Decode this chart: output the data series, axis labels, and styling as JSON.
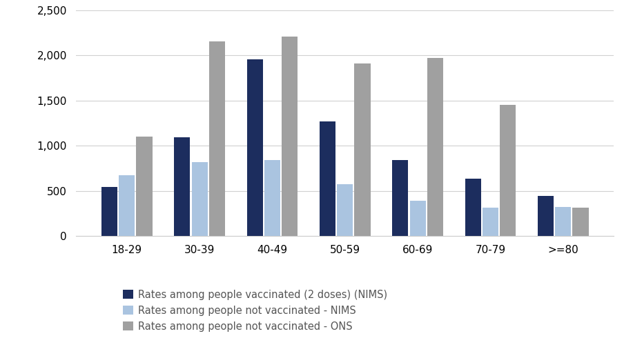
{
  "categories": [
    "18-29",
    "30-39",
    "40-49",
    "50-59",
    "60-69",
    "70-79",
    ">=80"
  ],
  "series": {
    "vaccinated_nims": [
      540,
      1090,
      1960,
      1270,
      840,
      635,
      445
    ],
    "not_vaccinated_nims": [
      670,
      820,
      845,
      575,
      390,
      310,
      325
    ],
    "not_vaccinated_ons": [
      1100,
      2160,
      2210,
      1910,
      1970,
      1450,
      315
    ]
  },
  "colors": {
    "vaccinated_nims": "#1c2d5e",
    "not_vaccinated_nims": "#aac4e0",
    "not_vaccinated_ons": "#a0a0a0"
  },
  "legend_labels": [
    "Rates among people vaccinated (2 doses) (NIMS)",
    "Rates among people not vaccinated - NIMS",
    "Rates among people not vaccinated - ONS"
  ],
  "ylim": [
    0,
    2500
  ],
  "yticks": [
    0,
    500,
    1000,
    1500,
    2000,
    2500
  ],
  "background_color": "#ffffff",
  "grid_color": "#d0d0d0"
}
